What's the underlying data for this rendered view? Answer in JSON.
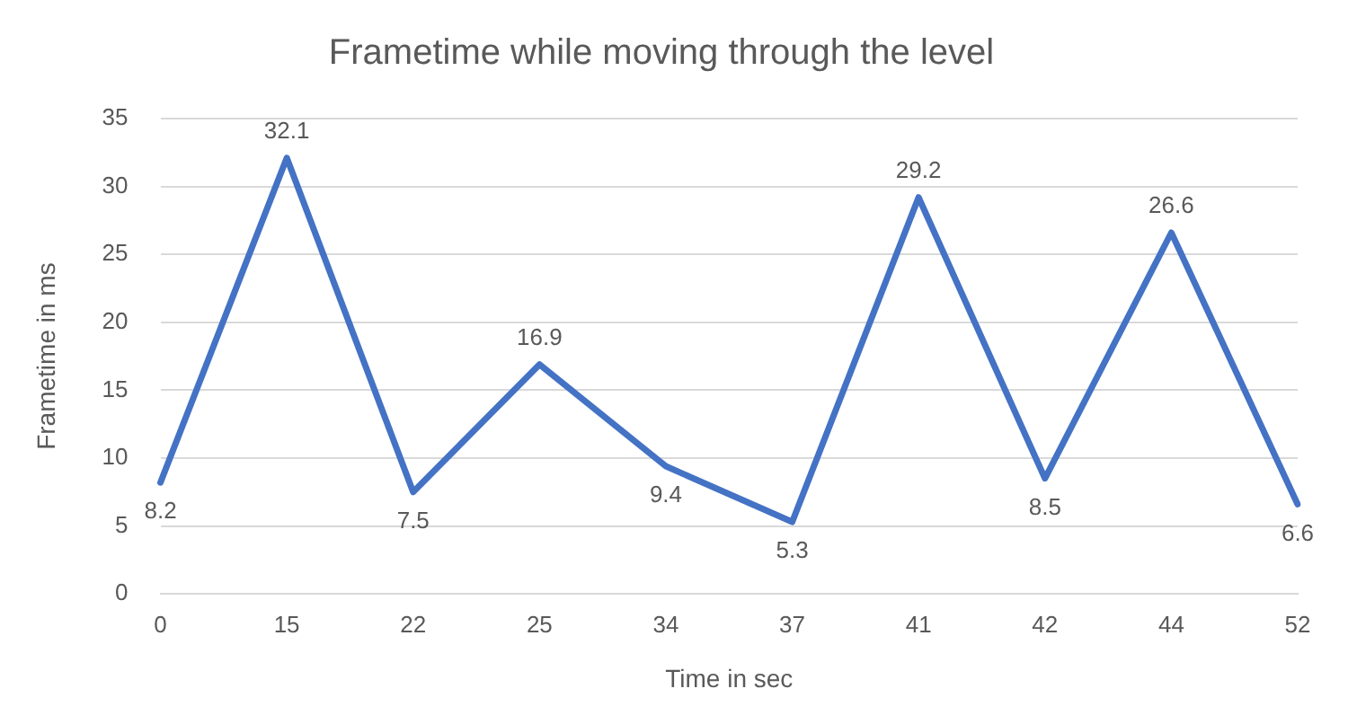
{
  "chart_data": {
    "type": "line",
    "title": "Frametime while moving through the level",
    "xlabel": "Time in sec",
    "ylabel": "Frametime in ms",
    "categories": [
      "0",
      "15",
      "22",
      "25",
      "34",
      "37",
      "41",
      "42",
      "44",
      "52"
    ],
    "series": [
      {
        "color": "#4472c4",
        "values": [
          8.2,
          32.1,
          7.5,
          16.9,
          9.4,
          5.3,
          29.2,
          8.5,
          26.6,
          6.6
        ]
      }
    ],
    "ylim": [
      0,
      35
    ],
    "yticks": [
      0,
      5,
      10,
      15,
      20,
      25,
      30,
      35
    ],
    "grid": "y",
    "legend": false,
    "marker": "none",
    "line_style": "solid",
    "data_labels": true
  }
}
